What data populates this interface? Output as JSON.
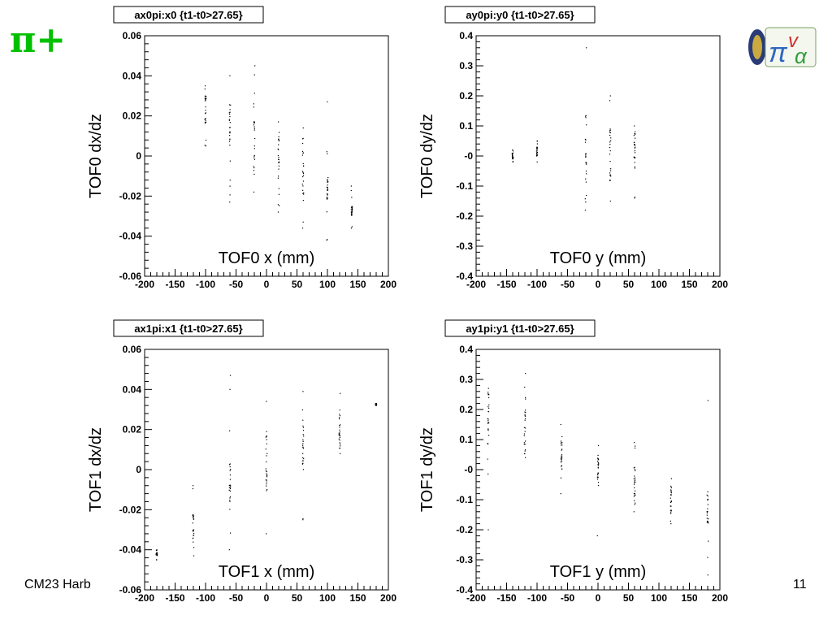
{
  "slide": {
    "title": "π+",
    "footer_left": "CM23 Harb",
    "page_number": "11",
    "colors": {
      "title": "#00c000",
      "marks": "#000000",
      "frame": "#000000"
    }
  },
  "chart_data": [
    {
      "type": "scatter",
      "title": "ax0pi:x0 {t1-t0>27.65}",
      "xlabel": "TOF0 x (mm)",
      "ylabel": "TOF0 dx/dz",
      "xlim": [
        -200,
        200
      ],
      "ylim": [
        -0.06,
        0.06
      ],
      "xticks": [
        -200,
        -150,
        -100,
        -50,
        0,
        50,
        100,
        150,
        200
      ],
      "xtick_labels": [
        "-200",
        "-150",
        "-100",
        "-50",
        "0",
        "50",
        "100",
        "150",
        "200"
      ],
      "yticks": [
        -0.06,
        -0.04,
        -0.02,
        0,
        0.02,
        0.04,
        0.06
      ],
      "ytick_labels": [
        "-0.06",
        "-0.04",
        "-0.02",
        "0",
        "0.02",
        "0.04",
        "0.06"
      ],
      "grid": false,
      "columns": [
        {
          "x": -100,
          "y_min": 0.005,
          "y_max": 0.035,
          "dense": [
            0.012,
            0.03
          ]
        },
        {
          "x": -60,
          "y_min": -0.023,
          "y_max": 0.04,
          "dense": [
            0.005,
            0.028
          ]
        },
        {
          "x": -20,
          "y_min": -0.018,
          "y_max": 0.045,
          "dense": [
            -0.01,
            0.02
          ]
        },
        {
          "x": 20,
          "y_min": -0.028,
          "y_max": 0.017,
          "dense": [
            -0.02,
            0.012
          ]
        },
        {
          "x": 60,
          "y_min": -0.036,
          "y_max": 0.014,
          "dense": [
            -0.02,
            0.01
          ]
        },
        {
          "x": 100,
          "y_min": -0.042,
          "y_max": 0.027,
          "dense": [
            -0.022,
            -0.01
          ]
        },
        {
          "x": 140,
          "y_min": -0.036,
          "y_max": -0.015,
          "dense": [
            -0.03,
            -0.025
          ]
        }
      ]
    },
    {
      "type": "scatter",
      "title": "ay0pi:y0 {t1-t0>27.65}",
      "xlabel": "TOF0 y (mm)",
      "ylabel": "TOF0 dy/dz",
      "xlim": [
        -200,
        200
      ],
      "ylim": [
        -0.4,
        0.4
      ],
      "xticks": [
        -200,
        -150,
        -100,
        -50,
        0,
        50,
        100,
        150,
        200
      ],
      "xtick_labels": [
        "-200",
        "-150",
        "-100",
        "-50",
        "0",
        "50",
        "100",
        "150",
        "200"
      ],
      "yticks": [
        -0.4,
        -0.3,
        -0.2,
        -0.1,
        0,
        0.1,
        0.2,
        0.3,
        0.4
      ],
      "ytick_labels": [
        "-0.4",
        "-0.3",
        "-0.2",
        "-0.1",
        "-0",
        "0.1",
        "0.2",
        "0.3",
        "0.4"
      ],
      "grid": false,
      "columns": [
        {
          "x": -140,
          "y_min": -0.02,
          "y_max": 0.02,
          "dense": [
            -0.01,
            0.01
          ]
        },
        {
          "x": -100,
          "y_min": -0.02,
          "y_max": 0.05,
          "dense": [
            0.0,
            0.03
          ]
        },
        {
          "x": -20,
          "y_min": -0.18,
          "y_max": 0.36,
          "dense": [
            -0.1,
            0.14
          ]
        },
        {
          "x": 20,
          "y_min": -0.15,
          "y_max": 0.2,
          "dense": [
            -0.1,
            0.1
          ]
        },
        {
          "x": 60,
          "y_min": -0.14,
          "y_max": 0.1,
          "dense": [
            -0.05,
            0.08
          ]
        }
      ]
    },
    {
      "type": "scatter",
      "title": "ax1pi:x1 {t1-t0>27.65}",
      "xlabel": "TOF1 x (mm)",
      "ylabel": "TOF1 dx/dz",
      "xlim": [
        -200,
        200
      ],
      "ylim": [
        -0.06,
        0.06
      ],
      "xticks": [
        -200,
        -150,
        -100,
        -50,
        0,
        50,
        100,
        150,
        200
      ],
      "xtick_labels": [
        "-200",
        "-150",
        "-100",
        "-50",
        "0",
        "50",
        "100",
        "150",
        "200"
      ],
      "yticks": [
        -0.06,
        -0.04,
        -0.02,
        0,
        0.02,
        0.04,
        0.06
      ],
      "ytick_labels": [
        "-0.06",
        "-0.04",
        "-0.02",
        "0",
        "0.02",
        "0.04",
        "0.06"
      ],
      "grid": false,
      "columns": [
        {
          "x": -180,
          "y_min": -0.045,
          "y_max": -0.04,
          "dense": [
            -0.043,
            -0.041
          ]
        },
        {
          "x": -120,
          "y_min": -0.043,
          "y_max": -0.008,
          "dense": [
            -0.035,
            -0.02
          ]
        },
        {
          "x": -60,
          "y_min": -0.04,
          "y_max": 0.047,
          "dense": [
            -0.02,
            0.005
          ]
        },
        {
          "x": 0,
          "y_min": -0.032,
          "y_max": 0.034,
          "dense": [
            -0.015,
            0.02
          ]
        },
        {
          "x": 60,
          "y_min": -0.025,
          "y_max": 0.039,
          "dense": [
            0.0,
            0.025
          ]
        },
        {
          "x": 120,
          "y_min": 0.008,
          "y_max": 0.038,
          "dense": [
            0.01,
            0.03
          ]
        },
        {
          "x": 180,
          "y_min": 0.032,
          "y_max": 0.033,
          "dense": [
            0.032,
            0.033
          ]
        }
      ]
    },
    {
      "type": "scatter",
      "title": "ay1pi:y1 {t1-t0>27.65}",
      "xlabel": "TOF1 y (mm)",
      "ylabel": "TOF1 dy/dz",
      "xlim": [
        -200,
        200
      ],
      "ylim": [
        -0.4,
        0.4
      ],
      "xticks": [
        -200,
        -150,
        -100,
        -50,
        0,
        50,
        100,
        150,
        200
      ],
      "xtick_labels": [
        "-200",
        "-150",
        "-100",
        "-50",
        "0",
        "50",
        "100",
        "150",
        "200"
      ],
      "yticks": [
        -0.4,
        -0.3,
        -0.2,
        -0.1,
        0,
        0.1,
        0.2,
        0.3,
        0.4
      ],
      "ytick_labels": [
        "-0.4",
        "-0.3",
        "-0.2",
        "-0.1",
        "-0",
        "0.1",
        "0.2",
        "0.3",
        "0.4"
      ],
      "grid": false,
      "columns": [
        {
          "x": -180,
          "y_min": -0.2,
          "y_max": 0.27,
          "dense": [
            0.08,
            0.26
          ]
        },
        {
          "x": -120,
          "y_min": 0.04,
          "y_max": 0.32,
          "dense": [
            0.05,
            0.2
          ]
        },
        {
          "x": -60,
          "y_min": -0.08,
          "y_max": 0.15,
          "dense": [
            0.0,
            0.1
          ]
        },
        {
          "x": 0,
          "y_min": -0.22,
          "y_max": 0.08,
          "dense": [
            -0.05,
            0.05
          ]
        },
        {
          "x": 60,
          "y_min": -0.14,
          "y_max": 0.09,
          "dense": [
            -0.12,
            0.02
          ]
        },
        {
          "x": 120,
          "y_min": -0.18,
          "y_max": -0.03,
          "dense": [
            -0.15,
            -0.05
          ]
        },
        {
          "x": 180,
          "y_min": -0.4,
          "y_max": 0.23,
          "dense": [
            -0.18,
            -0.07
          ]
        }
      ]
    }
  ]
}
